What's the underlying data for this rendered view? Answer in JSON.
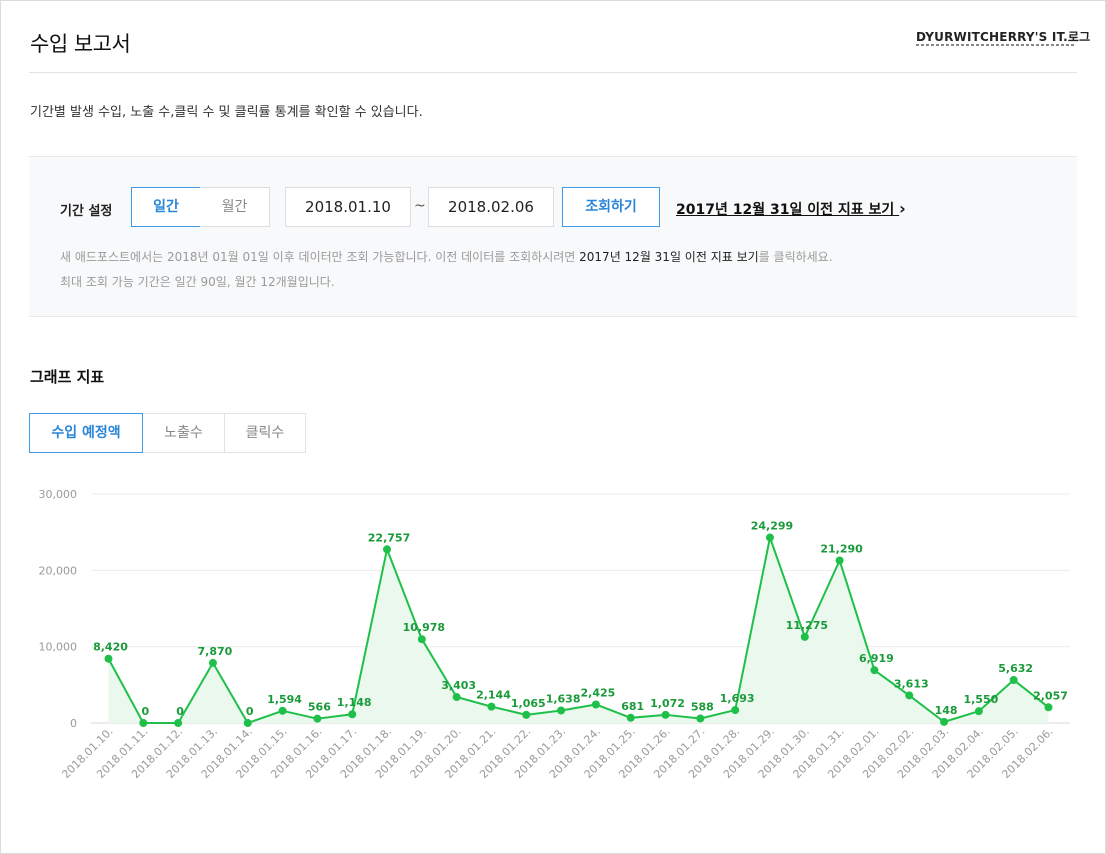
{
  "page": {
    "title": "수입 보고서",
    "logo_text": "DYURWITCHERRY'S IT.로그",
    "description": "기간별 발생 수입, 노출 수,클릭 수 및 클릭률 통계를 확인할 수 있습니다."
  },
  "filter": {
    "label": "기간 설정",
    "period_daily": "일간",
    "period_monthly": "월간",
    "start_date": "2018.01.10",
    "tilde": "~",
    "end_date": "2018.02.06",
    "search_button": "조회하기",
    "old_link": "2017년 12월 31일 이전 지표 보기",
    "old_link_chevron": "›",
    "note1_pre": "새 애드포스트에서는 2018년 01월 01일 이후 데이터만 조회 가능합니다. 이전 데이터를 조회하시려면 ",
    "note1_link": "2017년 12월 31일 이전 지표 보기",
    "note1_post": "를 클릭하세요.",
    "note2": "최대 조회 가능 기간은 일간 90일, 월간 12개월입니다."
  },
  "graph": {
    "title": "그래프 지표",
    "tabs": [
      "수입 예정액",
      "노출수",
      "클릭수"
    ],
    "active_tab": 0
  },
  "colors": {
    "accent_blue": "#3e9be8",
    "line_green": "#1fc04a",
    "fill_green": "#eaf8ee"
  },
  "chart_data": {
    "type": "line",
    "x": [
      "2018.01.10.",
      "2018.01.11.",
      "2018.01.12.",
      "2018.01.13.",
      "2018.01.14.",
      "2018.01.15.",
      "2018.01.16.",
      "2018.01.17.",
      "2018.01.18.",
      "2018.01.19.",
      "2018.01.20.",
      "2018.01.21.",
      "2018.01.22.",
      "2018.01.23.",
      "2018.01.24.",
      "2018.01.25.",
      "2018.01.26.",
      "2018.01.27.",
      "2018.01.28.",
      "2018.01.29.",
      "2018.01.30.",
      "2018.01.31.",
      "2018.02.01.",
      "2018.02.02.",
      "2018.02.03.",
      "2018.02.04.",
      "2018.02.05.",
      "2018.02.06."
    ],
    "values": [
      8420,
      0,
      0,
      7870,
      0,
      1594,
      566,
      1148,
      22757,
      10978,
      3403,
      2144,
      1065,
      1638,
      2425,
      681,
      1072,
      588,
      1693,
      24299,
      11275,
      21290,
      6919,
      3613,
      148,
      1550,
      5632,
      2057
    ],
    "value_labels": [
      "8,420",
      "0",
      "0",
      "7,870",
      "0",
      "1,594",
      "566",
      "1,148",
      "22,757",
      "10,978",
      "3,403",
      "2,144",
      "1,065",
      "1,638",
      "2,425",
      "681",
      "1,072",
      "588",
      "1,693",
      "24,299",
      "11,275",
      "21,290",
      "6,919",
      "3,613",
      "148",
      "1,550",
      "5,632",
      "2,057"
    ],
    "yticks": [
      0,
      10000,
      20000,
      30000
    ],
    "ytick_labels": [
      "0",
      "10,000",
      "20,000",
      "30,000"
    ],
    "ylim": [
      0,
      30000
    ],
    "grid": true,
    "area_fill": true
  }
}
